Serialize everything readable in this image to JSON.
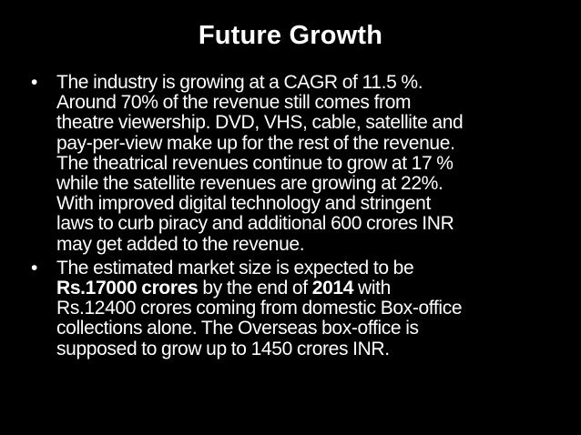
{
  "title": "Future Growth",
  "bullet_symbol": "•",
  "bullets": [
    {
      "lines": [
        "The industry is growing at a CAGR of 11.5 %.",
        "Around 70% of the revenue still comes from",
        "theatre viewership. DVD, VHS, cable, satellite and",
        "pay-per-view make up for the rest of the revenue.",
        "The theatrical revenues continue to grow at 17 %",
        "while the satellite revenues are growing at 22%.",
        "With improved digital technology and stringent",
        "laws to curb piracy and additional 600 crores INR",
        "may get added to the revenue."
      ]
    },
    {
      "line1": "The estimated market size is expected to be",
      "line2_bold_a": "Rs.17000 crores",
      "line2_text_a": " by the end of ",
      "line2_bold_b": "2014",
      "line2_text_b": " with",
      "line3": "Rs.12400 crores coming from domestic Box-office",
      "line4": "collections alone. The Overseas box-office is",
      "line5": "supposed to grow up to 1450 crores INR."
    }
  ]
}
